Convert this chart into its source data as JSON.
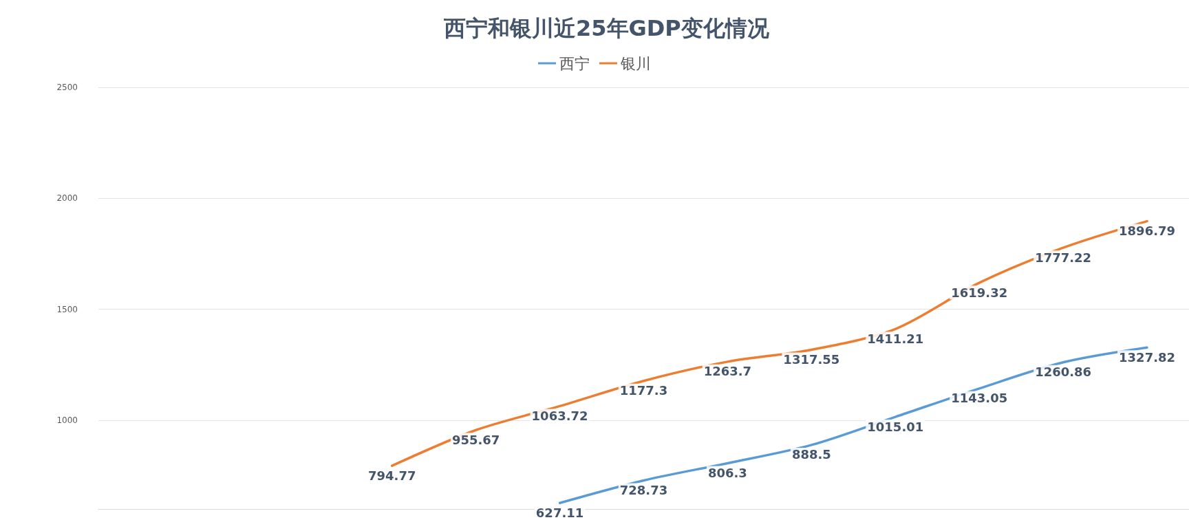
{
  "chart_data": {
    "type": "line",
    "title": "西宁和银川近25年GDP变化情况",
    "categories": [
      null,
      null,
      null,
      null,
      null,
      null,
      null,
      null,
      null,
      null,
      null,
      null,
      null
    ],
    "series": [
      {
        "name": "西宁",
        "color": "#5b9bd5",
        "values": [
          null,
          null,
          null,
          null,
          null,
          627.11,
          728.73,
          806.3,
          888.5,
          1015.01,
          1143.05,
          1260.86,
          1327.82
        ]
      },
      {
        "name": "银川",
        "color": "#ed7d31",
        "values": [
          null,
          null,
          null,
          794.77,
          955.67,
          1063.72,
          1177.3,
          1263.7,
          1317.55,
          1411.21,
          1619.32,
          1777.22,
          1896.79
        ]
      }
    ],
    "ylim": [
      600,
      2500
    ],
    "yticks": [
      1000,
      1500,
      2000,
      2500
    ],
    "grid": "y",
    "legend": "top",
    "tick_labels": "y",
    "marker": "none",
    "line_style": "solid",
    "data_labels": true
  }
}
